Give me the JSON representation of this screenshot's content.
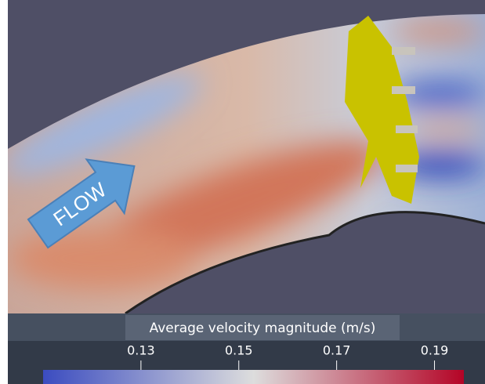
{
  "scene": {
    "arrow_label": "FLOW"
  },
  "colorbar": {
    "title": "Average velocity magnitude (m/s)",
    "lim": [
      0.11,
      0.196
    ],
    "ticks": [
      0.13,
      0.15,
      0.17,
      0.19
    ]
  }
}
